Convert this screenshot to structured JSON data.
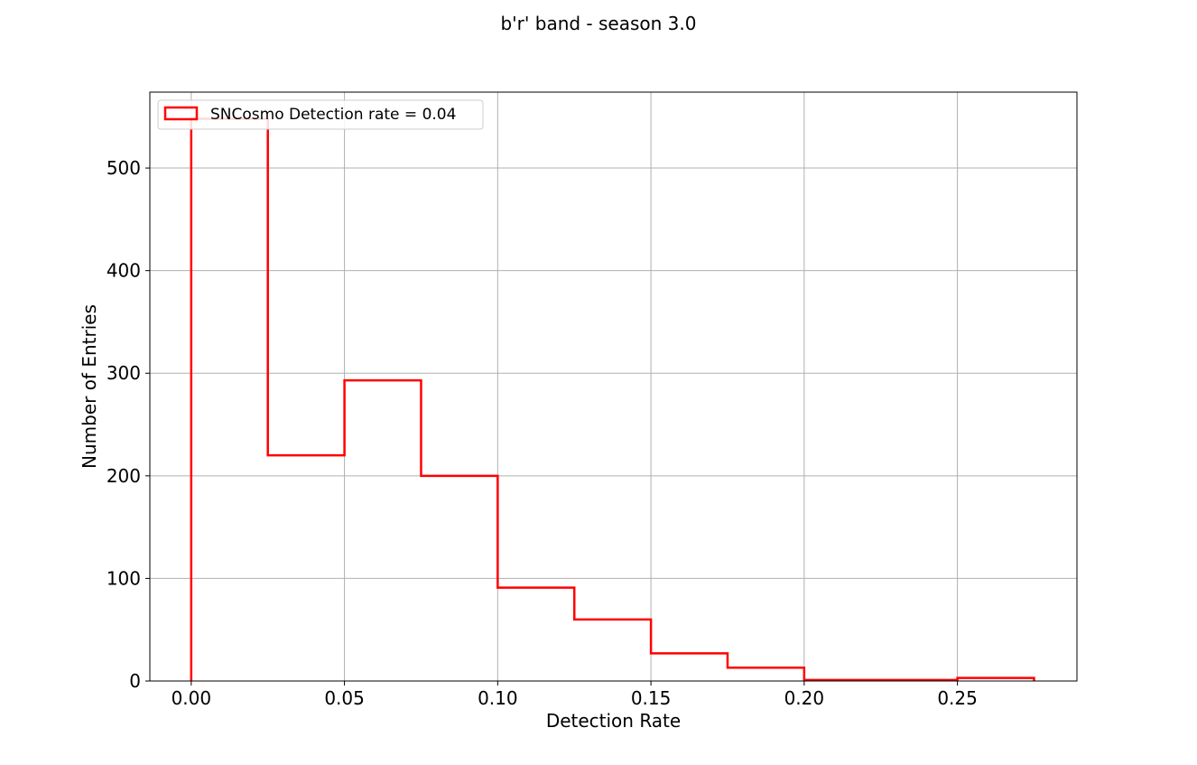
{
  "chart_data": {
    "type": "histogram",
    "title": "b'r' band - season 3.0",
    "xlabel": "Detection Rate",
    "ylabel": "Number of Entries",
    "xlim": [
      -0.0135,
      0.289
    ],
    "ylim": [
      0,
      574
    ],
    "grid": true,
    "legend_position": "upper-left",
    "x_ticks": [
      0.0,
      0.05,
      0.1,
      0.15,
      0.2,
      0.25
    ],
    "x_tick_labels": [
      "0.00",
      "0.05",
      "0.10",
      "0.15",
      "0.20",
      "0.25"
    ],
    "y_ticks": [
      0,
      100,
      200,
      300,
      400,
      500
    ],
    "y_tick_labels": [
      "0",
      "100",
      "200",
      "300",
      "400",
      "500"
    ],
    "bins": [
      {
        "left": 0.0,
        "right": 0.025,
        "count": 548
      },
      {
        "left": 0.025,
        "right": 0.05,
        "count": 220
      },
      {
        "left": 0.05,
        "right": 0.075,
        "count": 293
      },
      {
        "left": 0.075,
        "right": 0.1,
        "count": 200
      },
      {
        "left": 0.1,
        "right": 0.125,
        "count": 91
      },
      {
        "left": 0.125,
        "right": 0.15,
        "count": 60
      },
      {
        "left": 0.15,
        "right": 0.175,
        "count": 27
      },
      {
        "left": 0.175,
        "right": 0.2,
        "count": 13
      },
      {
        "left": 0.2,
        "right": 0.225,
        "count": 1
      },
      {
        "left": 0.225,
        "right": 0.25,
        "count": 1
      },
      {
        "left": 0.25,
        "right": 0.275,
        "count": 3
      }
    ],
    "series": [
      {
        "name": "SNCosmo  Detection rate = 0.04",
        "color": "#ff0000"
      }
    ]
  }
}
